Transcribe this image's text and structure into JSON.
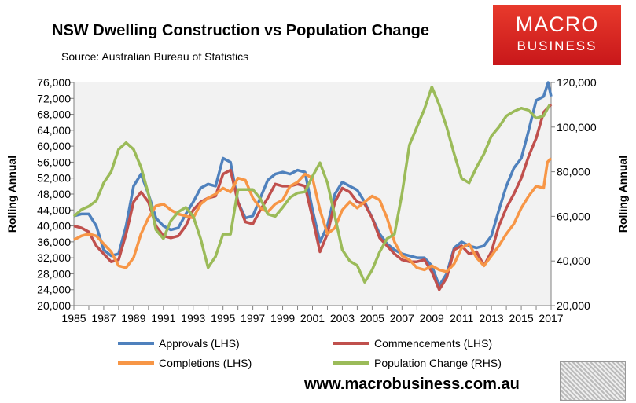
{
  "chart_data": {
    "type": "line",
    "title": "NSW Dwelling Construction vs Population Change",
    "subtitle": "Source: Australian Bureau of Statistics",
    "ylabel": "Rolling Annual",
    "y2label": "Rolling Annual",
    "ylim": [
      20000,
      76000
    ],
    "y2lim": [
      20000,
      120000
    ],
    "xlim": [
      1985,
      2017
    ],
    "yticks": [
      "20,000",
      "24,000",
      "28,000",
      "32,000",
      "36,000",
      "40,000",
      "44,000",
      "48,000",
      "52,000",
      "56,000",
      "60,000",
      "64,000",
      "68,000",
      "72,000",
      "76,000"
    ],
    "y2ticks": [
      "20,000",
      "40,000",
      "60,000",
      "80,000",
      "100,000",
      "120,000"
    ],
    "xticks": [
      "1985",
      "1987",
      "1989",
      "1991",
      "1993",
      "1995",
      "1997",
      "1999",
      "2001",
      "2003",
      "2005",
      "2007",
      "2009",
      "2011",
      "2013",
      "2015",
      "2017"
    ],
    "grid": false,
    "legend": "bottom",
    "series": [
      {
        "name": "Approvals (LHS)",
        "axis": "left",
        "color": "#4f81bd",
        "x": [
          1985,
          1985.5,
          1986,
          1986.5,
          1987,
          1987.5,
          1988,
          1988.5,
          1989,
          1989.5,
          1990,
          1990.5,
          1991,
          1991.5,
          1992,
          1992.5,
          1993,
          1993.5,
          1994,
          1994.5,
          1995,
          1995.5,
          1996,
          1996.5,
          1997,
          1997.5,
          1998,
          1998.5,
          1999,
          1999.5,
          2000,
          2000.5,
          2001,
          2001.5,
          2002,
          2002.5,
          2003,
          2003.5,
          2004,
          2004.5,
          2005,
          2005.5,
          2006,
          2006.5,
          2007,
          2007.5,
          2008,
          2008.5,
          2009,
          2009.5,
          2010,
          2010.5,
          2011,
          2011.5,
          2012,
          2012.5,
          2013,
          2013.5,
          2014,
          2014.5,
          2015,
          2015.5,
          2016,
          2016.5,
          2016.8,
          2017
        ],
        "values": [
          42500,
          43000,
          43000,
          40000,
          34000,
          32500,
          33000,
          40000,
          50000,
          53000,
          48000,
          42000,
          40000,
          39000,
          39500,
          43000,
          46000,
          49500,
          50500,
          50000,
          57000,
          56000,
          46000,
          42000,
          42500,
          47000,
          51500,
          53000,
          53500,
          53000,
          54000,
          53500,
          44000,
          36000,
          40000,
          48000,
          51000,
          50000,
          49000,
          46000,
          42000,
          38000,
          35500,
          34000,
          33000,
          32500,
          32000,
          32000,
          30000,
          25000,
          28000,
          34500,
          36000,
          35000,
          34500,
          35000,
          37500,
          44000,
          50000,
          54500,
          57000,
          64000,
          71500,
          72500,
          76000,
          72500
        ]
      },
      {
        "name": "Commencements (LHS)",
        "axis": "left",
        "color": "#c0504d",
        "x": [
          1985,
          1985.5,
          1986,
          1986.5,
          1987,
          1987.5,
          1988,
          1988.5,
          1989,
          1989.5,
          1990,
          1990.5,
          1991,
          1991.5,
          1992,
          1992.5,
          1993,
          1993.5,
          1994,
          1994.5,
          1995,
          1995.5,
          1996,
          1996.5,
          1997,
          1997.5,
          1998,
          1998.5,
          1999,
          1999.5,
          2000,
          2000.5,
          2001,
          2001.5,
          2002,
          2002.5,
          2003,
          2003.5,
          2004,
          2004.5,
          2005,
          2005.5,
          2006,
          2006.5,
          2007,
          2007.5,
          2008,
          2008.5,
          2009,
          2009.5,
          2010,
          2010.5,
          2011,
          2011.5,
          2012,
          2012.5,
          2013,
          2013.5,
          2014,
          2014.5,
          2015,
          2015.5,
          2016,
          2016.5,
          2017
        ],
        "values": [
          40000,
          39500,
          38500,
          35000,
          33000,
          31000,
          31500,
          38000,
          46000,
          48500,
          46000,
          40000,
          37500,
          37000,
          37500,
          40000,
          44000,
          46000,
          47000,
          47500,
          53000,
          54000,
          46000,
          41000,
          40500,
          44000,
          47000,
          50500,
          50000,
          50000,
          50500,
          50000,
          42000,
          33500,
          38000,
          46000,
          49500,
          48500,
          46000,
          45500,
          42000,
          37000,
          35000,
          33000,
          31500,
          31000,
          31000,
          31500,
          28500,
          24000,
          27000,
          34000,
          35000,
          33000,
          33500,
          30000,
          33500,
          40000,
          44500,
          48000,
          52000,
          57500,
          62000,
          68500,
          70500
        ]
      },
      {
        "name": "Completions (LHS)",
        "axis": "left",
        "color": "#f79646",
        "x": [
          1985,
          1985.5,
          1986,
          1986.5,
          1987,
          1987.5,
          1988,
          1988.5,
          1989,
          1989.5,
          1990,
          1990.5,
          1991,
          1991.5,
          1992,
          1992.5,
          1993,
          1993.5,
          1994,
          1994.5,
          1995,
          1995.5,
          1996,
          1996.5,
          1997,
          1997.5,
          1998,
          1998.5,
          1999,
          1999.5,
          2000,
          2000.5,
          2001,
          2001.5,
          2002,
          2002.5,
          2003,
          2003.5,
          2004,
          2004.5,
          2005,
          2005.5,
          2006,
          2006.5,
          2007,
          2007.5,
          2008,
          2008.5,
          2009,
          2009.5,
          2010,
          2010.5,
          2011,
          2011.5,
          2012,
          2012.5,
          2013,
          2013.5,
          2014,
          2014.5,
          2015,
          2015.5,
          2016,
          2016.5,
          2016.75,
          2017
        ],
        "values": [
          36500,
          37500,
          38000,
          37500,
          35500,
          33500,
          30000,
          29500,
          32000,
          38000,
          42000,
          45000,
          45500,
          44000,
          43000,
          42500,
          42000,
          45500,
          47000,
          48000,
          49500,
          48500,
          52000,
          51500,
          47000,
          44500,
          43500,
          45500,
          46500,
          50000,
          51000,
          53000,
          52000,
          44000,
          38000,
          39500,
          44000,
          46000,
          44500,
          46000,
          47500,
          46500,
          42000,
          36000,
          32500,
          31500,
          29500,
          29000,
          30000,
          29000,
          28500,
          30500,
          34500,
          35500,
          32000,
          30000,
          32500,
          35000,
          38000,
          40500,
          44500,
          47500,
          50000,
          49500,
          56000,
          57000
        ]
      },
      {
        "name": "Population Change (RHS)",
        "axis": "right",
        "color": "#9bbb59",
        "x": [
          1985,
          1985.5,
          1986,
          1986.5,
          1987,
          1987.5,
          1988,
          1988.5,
          1989,
          1989.5,
          1990,
          1990.5,
          1991,
          1991.5,
          1992,
          1992.5,
          1993,
          1993.5,
          1994,
          1994.5,
          1995,
          1995.5,
          1996,
          1996.5,
          1997,
          1997.5,
          1998,
          1998.5,
          1999,
          1999.5,
          2000,
          2000.5,
          2001,
          2001.5,
          2002,
          2002.5,
          2003,
          2003.5,
          2004,
          2004.5,
          2005,
          2005.5,
          2006,
          2006.5,
          2007,
          2007.5,
          2008,
          2008.5,
          2009,
          2009.5,
          2010,
          2010.5,
          2011,
          2011.5,
          2012,
          2012.5,
          2013,
          2013.5,
          2014,
          2014.5,
          2015,
          2015.5,
          2016,
          2016.5,
          2016.9
        ],
        "values": [
          60000,
          63000,
          64500,
          67000,
          75000,
          80000,
          90000,
          93000,
          90000,
          82000,
          70000,
          54000,
          50000,
          58000,
          62000,
          64000,
          60000,
          50000,
          37000,
          42000,
          52000,
          52000,
          72000,
          72000,
          72000,
          68000,
          61000,
          60000,
          64000,
          68500,
          70500,
          71000,
          78000,
          84000,
          75000,
          60000,
          45000,
          40000,
          38000,
          30500,
          36000,
          44000,
          50000,
          52000,
          70000,
          92000,
          100000,
          108000,
          118000,
          110000,
          100000,
          88000,
          77000,
          75000,
          82000,
          88000,
          96000,
          100000,
          105000,
          107000,
          108500,
          107500,
          104000,
          105000,
          110000
        ]
      }
    ]
  },
  "logo": {
    "line1": "MACRO",
    "line2": "BUSINESS"
  },
  "website": "www.macrobusiness.com.au"
}
